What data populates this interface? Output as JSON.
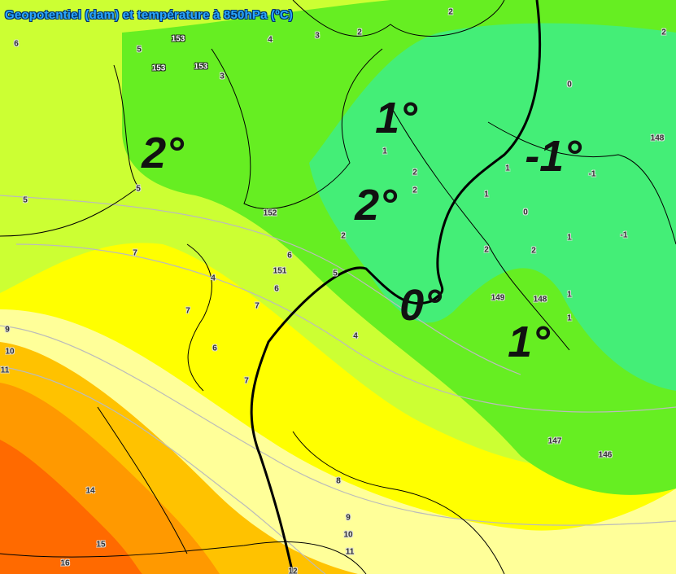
{
  "title": "Geopotentiel (dam) et température à 850hPa (ºC)",
  "colors": {
    "orange_deep": "#ff6a00",
    "orange": "#ff9900",
    "amber": "#ffc200",
    "pale_yellow": "#ffff99",
    "yellow": "#ffff00",
    "yellow_green": "#ccff33",
    "green": "#66ee22",
    "teal_green": "#44ee77"
  },
  "big_labels": [
    "2°",
    "1°",
    "-1°",
    "2°",
    "0°",
    "1°"
  ],
  "temperature_labels": [
    "6",
    "5",
    "3",
    "4",
    "3",
    "2",
    "2",
    "2",
    "0",
    "148",
    "1",
    "-1",
    "1",
    "2",
    "2",
    "1",
    "2",
    "0",
    "2",
    "1",
    "-1",
    "2",
    "5",
    "5",
    "152",
    "4",
    "6",
    "151",
    "6",
    "5",
    "7",
    "7",
    "7",
    "6",
    "4",
    "7",
    "9",
    "10",
    "11",
    "149",
    "148",
    "1",
    "1",
    "147",
    "146",
    "14",
    "15",
    "16",
    "8",
    "9",
    "10",
    "11",
    "12"
  ],
  "geopotential_labels": [
    "153",
    "153",
    "153"
  ]
}
